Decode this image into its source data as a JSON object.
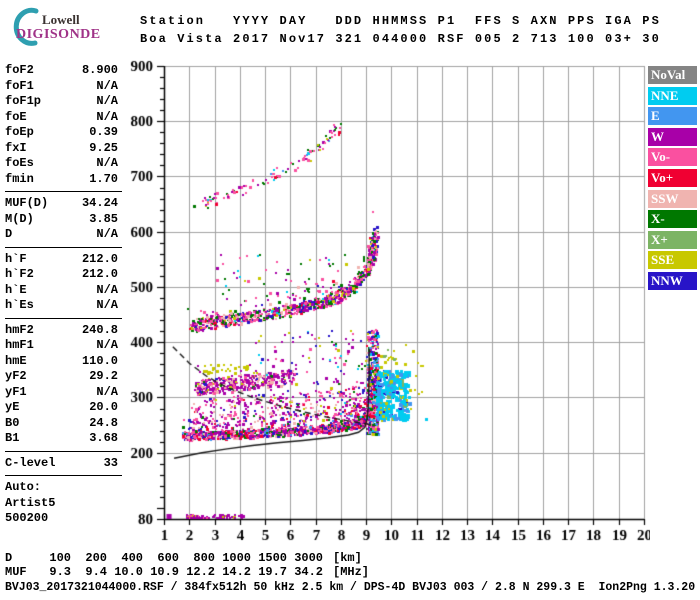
{
  "branding": {
    "line1": "Lowell",
    "line2": "DIGISONDE"
  },
  "header": {
    "line1": "Station   YYYY DAY   DDD HHMMSS P1  FFS S AXN PPS IGA PS",
    "line2": "Boa Vista 2017 Nov17 321 044000 RSF 005 2 713 100 03+ 30"
  },
  "params": {
    "sections": [
      {
        "rows": [
          {
            "label": "foF2",
            "value": "8.900"
          },
          {
            "label": "foF1",
            "value": "N/A"
          },
          {
            "label": "foF1p",
            "value": "N/A"
          },
          {
            "label": "foE",
            "value": "N/A"
          },
          {
            "label": "foEp",
            "value": "0.39"
          },
          {
            "label": "fxI",
            "value": "9.25"
          },
          {
            "label": "foEs",
            "value": "N/A"
          },
          {
            "label": "fmin",
            "value": "1.70"
          }
        ]
      },
      {
        "rows": [
          {
            "label": "MUF(D)",
            "value": "34.24"
          },
          {
            "label": "M(D)",
            "value": "3.85"
          },
          {
            "label": "D",
            "value": "N/A"
          }
        ]
      },
      {
        "rows": [
          {
            "label": "h`F",
            "value": "212.0"
          },
          {
            "label": "h`F2",
            "value": "212.0"
          },
          {
            "label": "h`E",
            "value": "N/A"
          },
          {
            "label": "h`Es",
            "value": "N/A"
          }
        ]
      },
      {
        "rows": [
          {
            "label": "hmF2",
            "value": "240.8"
          },
          {
            "label": "hmF1",
            "value": "N/A"
          },
          {
            "label": "hmE",
            "value": "110.0"
          },
          {
            "label": "yF2",
            "value": "29.2"
          },
          {
            "label": "yF1",
            "value": "N/A"
          },
          {
            "label": "yE",
            "value": "20.0"
          },
          {
            "label": "B0",
            "value": "24.8"
          },
          {
            "label": "B1",
            "value": "3.68"
          }
        ]
      },
      {
        "rows": [
          {
            "label": "C-level",
            "value": "33"
          }
        ]
      },
      {
        "rows": [
          {
            "label": "Auto:",
            "value": ""
          },
          {
            "label": "Artist5",
            "value": ""
          },
          {
            "label": "500200",
            "value": ""
          }
        ]
      }
    ]
  },
  "legend": {
    "items": [
      {
        "label": "NoVal",
        "color": "#848484"
      },
      {
        "label": "NNE",
        "color": "#00CCF0"
      },
      {
        "label": "E",
        "color": "#4296F0"
      },
      {
        "label": "W",
        "color": "#A800A8"
      },
      {
        "label": "Vo-",
        "color": "#FA50A0"
      },
      {
        "label": "Vo+",
        "color": "#F00032"
      },
      {
        "label": "SSW",
        "color": "#F0B4B0"
      },
      {
        "label": "X-",
        "color": "#007800"
      },
      {
        "label": "X+",
        "color": "#7CB464"
      },
      {
        "label": "SSE",
        "color": "#C8C800"
      },
      {
        "label": "NNW",
        "color": "#2814C8"
      }
    ]
  },
  "distance_table": {
    "rows": [
      {
        "label": "D",
        "values": [
          "100",
          "200",
          "400",
          "600",
          "800",
          "1000",
          "1500",
          "3000"
        ],
        "unit": "[km]"
      },
      {
        "label": "MUF",
        "values": [
          "9.3",
          "9.4",
          "10.0",
          "10.9",
          "12.2",
          "14.2",
          "19.7",
          "34.2"
        ],
        "unit": "[MHz]"
      }
    ]
  },
  "footer": {
    "file_info": "BVJ03_2017321044000.RSF / 384fx512h 50 kHz 2.5 km / DPS-4D BVJ03 003 / 2.8 N 299.3 E  Ion2Png 1.3.20"
  },
  "chart_data": {
    "type": "scatter",
    "title": "Ionogram: virtual height vs frequency",
    "xlim": [
      1,
      20
    ],
    "ylim": [
      80,
      900
    ],
    "x_ticks": [
      1,
      2,
      3,
      4,
      5,
      6,
      7,
      8,
      9,
      10,
      11,
      12,
      13,
      14,
      15,
      16,
      17,
      18,
      19,
      20
    ],
    "y_tick_labels": [
      80,
      200,
      300,
      400,
      500,
      600,
      700,
      800,
      900
    ],
    "y_minor_step": 20,
    "grid": true,
    "grid_color": "#a0a0a0",
    "axis_color": "#000000",
    "colors": {
      "NoVal": "#848484",
      "NNE": "#00CCF0",
      "E": "#4296F0",
      "W": "#A800A8",
      "Vo-": "#FA50A0",
      "Vo+": "#F00032",
      "SSW": "#F0B4B0",
      "X-": "#007800",
      "X+": "#7CB464",
      "SSE": "#C8C800",
      "NNW": "#2814C8"
    },
    "traces": [
      {
        "name": "F-trace",
        "kind": "band",
        "seed": 1,
        "path": [
          [
            1.7,
            231
          ],
          [
            3,
            233
          ],
          [
            4.5,
            236
          ],
          [
            6,
            240
          ],
          [
            7.5,
            245
          ],
          [
            8.4,
            251
          ],
          [
            8.9,
            259
          ],
          [
            9.15,
            274
          ],
          [
            9.3,
            300
          ]
        ],
        "thickness": 14,
        "count": 1600,
        "fjitter": 0.12,
        "up_frac": 0.25,
        "up_max": 45,
        "size": 2,
        "big_frac": 0.35,
        "colors": [
          [
            "W",
            26
          ],
          [
            "Vo-",
            22
          ],
          [
            "Vo+",
            14
          ],
          [
            "SSW",
            12
          ],
          [
            "X-",
            12
          ],
          [
            "NNW",
            10
          ],
          [
            "E",
            4
          ]
        ]
      },
      {
        "name": "F-trace-spread",
        "kind": "band",
        "seed": 2,
        "path": [
          [
            2,
            268
          ],
          [
            3.5,
            276
          ],
          [
            5,
            280
          ],
          [
            6.5,
            283
          ],
          [
            8,
            290
          ],
          [
            9,
            305
          ]
        ],
        "thickness": 55,
        "count": 330,
        "fjitter": 0.15,
        "size": 2,
        "big_frac": 0.1,
        "colors": [
          [
            "W",
            45
          ],
          [
            "Vo-",
            20
          ],
          [
            "SSW",
            15
          ],
          [
            "NNW",
            10
          ],
          [
            "SSE",
            5
          ],
          [
            "Vo+",
            5
          ]
        ]
      },
      {
        "name": "mid-cluster",
        "kind": "band",
        "seed": 3,
        "bias": 1.4,
        "path": [
          [
            2.3,
            318
          ],
          [
            3,
            323
          ],
          [
            3.8,
            327
          ],
          [
            4.6,
            331
          ],
          [
            5.5,
            336
          ],
          [
            6.1,
            339
          ]
        ],
        "thickness": 28,
        "count": 380,
        "fjitter": 0.1,
        "size": 2,
        "big_frac": 0.3,
        "colors": [
          [
            "W",
            50
          ],
          [
            "Vo-",
            22
          ],
          [
            "SSW",
            14
          ],
          [
            "X-",
            5
          ],
          [
            "SSE",
            4
          ],
          [
            "NNW",
            5
          ]
        ]
      },
      {
        "name": "mid-cluster-yellow",
        "kind": "band",
        "seed": 4,
        "path": [
          [
            2.4,
            352
          ],
          [
            3.5,
            355
          ],
          [
            4.8,
            350
          ]
        ],
        "thickness": 16,
        "count": 32,
        "fjitter": 0.15,
        "size": 2,
        "big_frac": 0.3,
        "colors": [
          [
            "SSE",
            70
          ],
          [
            "W",
            30
          ]
        ]
      },
      {
        "name": "second-multiple",
        "kind": "band",
        "seed": 5,
        "path": [
          [
            2.0,
            428
          ],
          [
            3,
            438
          ],
          [
            4,
            445
          ],
          [
            5,
            452
          ],
          [
            6,
            459
          ],
          [
            7,
            470
          ],
          [
            7.8,
            482
          ],
          [
            8.5,
            501
          ],
          [
            9.0,
            531
          ],
          [
            9.25,
            566
          ],
          [
            9.35,
            596
          ]
        ],
        "thickness": 20,
        "count": 1000,
        "fjitter": 0.12,
        "up_frac": 0.3,
        "up_max": 40,
        "size": 2,
        "big_frac": 0.35,
        "colors": [
          [
            "Vo-",
            28
          ],
          [
            "W",
            22
          ],
          [
            "X-",
            18
          ],
          [
            "SSW",
            12
          ],
          [
            "NNW",
            8
          ],
          [
            "Vo+",
            5
          ],
          [
            "NNE",
            3
          ],
          [
            "SSE",
            4
          ]
        ]
      },
      {
        "name": "third-multiple",
        "kind": "band",
        "seed": 6,
        "path": [
          [
            2.3,
            648
          ],
          [
            3,
            662
          ],
          [
            4,
            678
          ],
          [
            5,
            697
          ],
          [
            6,
            718
          ],
          [
            6.8,
            742
          ],
          [
            7.4,
            768
          ],
          [
            7.9,
            793
          ]
        ],
        "thickness": 16,
        "count": 115,
        "fjitter": 0.18,
        "size": 2,
        "big_frac": 0.15,
        "colors": [
          [
            "Vo-",
            40
          ],
          [
            "W",
            25
          ],
          [
            "X-",
            12
          ],
          [
            "E",
            6
          ],
          [
            "NNE",
            6
          ],
          [
            "SSE",
            6
          ],
          [
            "Vo+",
            5
          ]
        ]
      },
      {
        "name": "asymptote-column",
        "kind": "blob",
        "seed": 7,
        "f0": 9.0,
        "f1": 9.45,
        "fbias": 1,
        "h0": 235,
        "h1": 425,
        "hbias": 1.2,
        "count": 430,
        "size": 2,
        "big_frac": 0.4,
        "colors": [
          [
            "X-",
            20
          ],
          [
            "NNW",
            15
          ],
          [
            "W",
            15
          ],
          [
            "Vo-",
            12
          ],
          [
            "SSW",
            10
          ],
          [
            "E",
            10
          ],
          [
            "NNE",
            8
          ],
          [
            "SSE",
            5
          ],
          [
            "Vo+",
            5
          ]
        ]
      },
      {
        "name": "nne-cluster",
        "kind": "blob",
        "seed": 8,
        "f0": 9.4,
        "f1": 10.65,
        "fbias": 1.5,
        "h0": 262,
        "h1": 350,
        "hbias": 1,
        "count": 330,
        "size": 3,
        "big_frac": 0.3,
        "colors": [
          [
            "NNE",
            62
          ],
          [
            "E",
            22
          ],
          [
            "NNW",
            7
          ],
          [
            "SSE",
            5
          ],
          [
            "X+",
            4
          ]
        ]
      },
      {
        "name": "sse-stragglers",
        "kind": "blob",
        "seed": 9,
        "f0": 9.5,
        "f1": 11.4,
        "fbias": 1.3,
        "h0": 258,
        "h1": 398,
        "hbias": 1,
        "count": 40,
        "size": 2,
        "big_frac": 0.4,
        "colors": [
          [
            "SSE",
            75
          ],
          [
            "NNE",
            10
          ],
          [
            "X+",
            15
          ]
        ]
      },
      {
        "name": "baseline-noise",
        "kind": "blob",
        "seed": 10,
        "f0": 1.85,
        "f1": 4.15,
        "fbias": 1.2,
        "h0": 82,
        "h1": 89,
        "hbias": 1,
        "count": 75,
        "size": 2,
        "big_frac": 0.2,
        "colors": [
          [
            "W",
            82
          ],
          [
            "SSE",
            10
          ],
          [
            "Vo-",
            8
          ]
        ]
      },
      {
        "name": "sparse-noise-upper",
        "kind": "blob",
        "seed": 11,
        "f0": 4.5,
        "f1": 9.0,
        "fbias": 0.8,
        "h0": 255,
        "h1": 425,
        "hbias": 1,
        "count": 140,
        "size": 2,
        "big_frac": 0.15,
        "colors": [
          [
            "W",
            40
          ],
          [
            "Vo-",
            20
          ],
          [
            "NNW",
            15
          ],
          [
            "SSE",
            10
          ],
          [
            "X-",
            10
          ],
          [
            "NNE",
            5
          ]
        ]
      },
      {
        "name": "sparse-noise-2m",
        "kind": "blob",
        "seed": 12,
        "f0": 3.0,
        "f1": 8.3,
        "fbias": 0.9,
        "h0": 475,
        "h1": 560,
        "hbias": 1,
        "count": 55,
        "size": 2,
        "big_frac": 0.15,
        "colors": [
          [
            "Vo-",
            35
          ],
          [
            "W",
            30
          ],
          [
            "X-",
            15
          ],
          [
            "NNE",
            10
          ],
          [
            "SSE",
            10
          ]
        ]
      }
    ],
    "lines": [
      {
        "name": "true-height-profile",
        "style": "solid",
        "path": [
          [
            1.4,
            190
          ],
          [
            2.5,
            200
          ],
          [
            3.5,
            207
          ],
          [
            4.5,
            213
          ],
          [
            5.5,
            218
          ],
          [
            6.5,
            222
          ],
          [
            7.5,
            227
          ],
          [
            8.3,
            232
          ],
          [
            8.7,
            237
          ],
          [
            8.95,
            246
          ],
          [
            9.05,
            262
          ],
          [
            9.1,
            300
          ],
          [
            9.12,
            345
          ],
          [
            9.12,
            388
          ]
        ]
      },
      {
        "name": "muf-transmission-curve",
        "style": "dashed",
        "path": [
          [
            1.35,
            392
          ],
          [
            2,
            362
          ],
          [
            2.7,
            338
          ],
          [
            3.5,
            318
          ],
          [
            4.5,
            300
          ],
          [
            5.5,
            286
          ],
          [
            6.5,
            274
          ],
          [
            7.5,
            264
          ],
          [
            8.5,
            256
          ],
          [
            9.3,
            250
          ]
        ]
      }
    ],
    "bars": [
      {
        "name": "noise-bar",
        "f0": 1.1,
        "f1": 1.3,
        "h0": 80,
        "h1": 89,
        "color": "W"
      }
    ]
  }
}
